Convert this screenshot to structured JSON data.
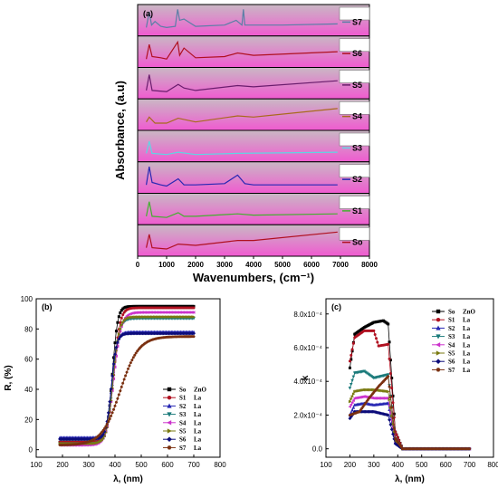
{
  "chart_data": [
    {
      "type": "line",
      "panel_label": "(a)",
      "ylabel": "Absorbance, (a.u)",
      "xlabel": "Wavenumbers, (cm⁻¹)",
      "xlim": [
        0,
        8000
      ],
      "x_ticks": [
        0,
        1000,
        2000,
        3000,
        4000,
        5000,
        6000,
        7000,
        8000
      ],
      "stacked_panels": [
        {
          "name": "S7",
          "color": "#5b7fa6",
          "values": [
            [
              300,
              0.2
            ],
            [
              400,
              0.85
            ],
            [
              480,
              0.3
            ],
            [
              600,
              0.45
            ],
            [
              800,
              0.25
            ],
            [
              1000,
              0.2
            ],
            [
              1300,
              0.25
            ],
            [
              1380,
              0.95
            ],
            [
              1450,
              0.5
            ],
            [
              1600,
              0.55
            ],
            [
              2000,
              0.25
            ],
            [
              3000,
              0.3
            ],
            [
              3400,
              0.5
            ],
            [
              3600,
              0.3
            ],
            [
              3650,
              0.95
            ],
            [
              3700,
              0.3
            ],
            [
              5000,
              0.3
            ],
            [
              6900,
              0.35
            ]
          ]
        },
        {
          "name": "S6",
          "color": "#b01020",
          "values": [
            [
              300,
              0.2
            ],
            [
              400,
              0.8
            ],
            [
              500,
              0.3
            ],
            [
              800,
              0.25
            ],
            [
              1000,
              0.2
            ],
            [
              1380,
              0.9
            ],
            [
              1450,
              0.35
            ],
            [
              1600,
              0.65
            ],
            [
              2000,
              0.25
            ],
            [
              3000,
              0.3
            ],
            [
              3450,
              0.45
            ],
            [
              4000,
              0.35
            ],
            [
              6900,
              0.5
            ]
          ]
        },
        {
          "name": "S5",
          "color": "#6a1d6d",
          "values": [
            [
              300,
              0.2
            ],
            [
              400,
              0.85
            ],
            [
              500,
              0.2
            ],
            [
              1000,
              0.15
            ],
            [
              1400,
              0.45
            ],
            [
              1600,
              0.3
            ],
            [
              2000,
              0.2
            ],
            [
              3450,
              0.4
            ],
            [
              4000,
              0.35
            ],
            [
              6900,
              0.6
            ]
          ]
        },
        {
          "name": "S4",
          "color": "#a86a1c",
          "values": [
            [
              300,
              0.2
            ],
            [
              400,
              0.4
            ],
            [
              600,
              0.15
            ],
            [
              1000,
              0.15
            ],
            [
              1400,
              0.35
            ],
            [
              2000,
              0.2
            ],
            [
              3450,
              0.45
            ],
            [
              4000,
              0.4
            ],
            [
              6900,
              0.75
            ]
          ]
        },
        {
          "name": "S3",
          "color": "#5fd6e3",
          "values": [
            [
              300,
              0.2
            ],
            [
              400,
              0.7
            ],
            [
              500,
              0.2
            ],
            [
              1000,
              0.15
            ],
            [
              1400,
              0.25
            ],
            [
              2000,
              0.15
            ],
            [
              3450,
              0.2
            ],
            [
              6900,
              0.25
            ]
          ]
        },
        {
          "name": "S2",
          "color": "#2727b3",
          "values": [
            [
              300,
              0.2
            ],
            [
              400,
              0.95
            ],
            [
              500,
              0.3
            ],
            [
              800,
              0.2
            ],
            [
              1000,
              0.15
            ],
            [
              1400,
              0.45
            ],
            [
              1600,
              0.2
            ],
            [
              2000,
              0.2
            ],
            [
              3000,
              0.25
            ],
            [
              3450,
              0.6
            ],
            [
              3700,
              0.25
            ],
            [
              4000,
              0.2
            ],
            [
              6900,
              0.2
            ]
          ]
        },
        {
          "name": "S1",
          "color": "#44b030",
          "values": [
            [
              300,
              0.2
            ],
            [
              400,
              0.8
            ],
            [
              500,
              0.2
            ],
            [
              1000,
              0.15
            ],
            [
              1400,
              0.35
            ],
            [
              1600,
              0.2
            ],
            [
              2000,
              0.2
            ],
            [
              3450,
              0.3
            ],
            [
              4000,
              0.25
            ],
            [
              6900,
              0.3
            ]
          ]
        },
        {
          "name": "So",
          "color": "#b01020",
          "values": [
            [
              300,
              0.2
            ],
            [
              400,
              0.75
            ],
            [
              500,
              0.2
            ],
            [
              1000,
              0.15
            ],
            [
              1400,
              0.35
            ],
            [
              2000,
              0.3
            ],
            [
              3450,
              0.5
            ],
            [
              4000,
              0.5
            ],
            [
              6900,
              0.85
            ]
          ]
        }
      ]
    },
    {
      "type": "line",
      "panel_label": "(b)",
      "ylabel": "R, (%)",
      "xlabel": "λ, (nm)",
      "xlim": [
        100,
        800
      ],
      "ylim": [
        -5,
        100
      ],
      "x_ticks": [
        100,
        200,
        300,
        400,
        500,
        600,
        700,
        800
      ],
      "y_ticks": [
        0,
        20,
        40,
        60,
        80,
        100
      ],
      "series": [
        {
          "name": "So",
          "dopant": "ZnO",
          "color": "#000000",
          "marker": "square",
          "plateau": 95,
          "start": 5,
          "mid": 390,
          "width": 10
        },
        {
          "name": "S1",
          "dopant": "La",
          "color": "#b01020",
          "marker": "circle",
          "plateau": 94,
          "start": 5,
          "mid": 395,
          "width": 12
        },
        {
          "name": "S2",
          "dopant": "La",
          "color": "#2727b3",
          "marker": "triangle-up",
          "plateau": 78,
          "start": 8,
          "mid": 388,
          "width": 10
        },
        {
          "name": "S3",
          "dopant": "La",
          "color": "#1a7a7a",
          "marker": "triangle-down",
          "plateau": 87,
          "start": 4,
          "mid": 392,
          "width": 12
        },
        {
          "name": "S4",
          "dopant": "La",
          "color": "#cc33cc",
          "marker": "triangle-left",
          "plateau": 91,
          "start": 3,
          "mid": 395,
          "width": 14
        },
        {
          "name": "S5",
          "dopant": "La",
          "color": "#7a7a10",
          "marker": "triangle-right",
          "plateau": 88,
          "start": 4,
          "mid": 393,
          "width": 12
        },
        {
          "name": "S6",
          "dopant": "La",
          "color": "#0d0d7a",
          "marker": "diamond",
          "plateau": 77,
          "start": 7,
          "mid": 386,
          "width": 10
        },
        {
          "name": "S7",
          "dopant": "La",
          "color": "#7a3010",
          "marker": "hexagon",
          "plateau": 75,
          "start": 3,
          "mid": 420,
          "width": 35
        }
      ]
    },
    {
      "type": "line",
      "panel_label": "(c)",
      "ylabel": "k",
      "xlabel": "λ, (nm)",
      "xlim": [
        100,
        800
      ],
      "ylim": [
        -5e-05,
        0.00089
      ],
      "x_ticks": [
        100,
        200,
        300,
        400,
        500,
        600,
        700,
        800
      ],
      "y_ticks": [
        0.0,
        0.0002,
        0.0004,
        0.0006,
        0.0008
      ],
      "y_tick_labels": [
        "0.0",
        "2.0x10⁻⁴",
        "4.0x10⁻⁴",
        "6.0x10⁻⁴",
        "8.0x10⁻⁴"
      ],
      "series": [
        {
          "name": "So",
          "dopant": "ZnO",
          "color": "#000000",
          "marker": "square",
          "points": [
            [
              200,
              0.00048
            ],
            [
              220,
              0.00068
            ],
            [
              260,
              0.00072
            ],
            [
              300,
              0.00075
            ],
            [
              340,
              0.00076
            ],
            [
              360,
              0.00074
            ],
            [
              390,
              0.0001
            ],
            [
              420,
              0.0
            ],
            [
              700,
              0.0
            ]
          ]
        },
        {
          "name": "S1",
          "dopant": "La",
          "color": "#b01020",
          "marker": "circle",
          "points": [
            [
              200,
              0.00052
            ],
            [
              220,
              0.00066
            ],
            [
              260,
              0.0007
            ],
            [
              300,
              0.0007
            ],
            [
              320,
              0.00061
            ],
            [
              360,
              0.00062
            ],
            [
              390,
              0.0001
            ],
            [
              420,
              0.0
            ],
            [
              700,
              0.0
            ]
          ]
        },
        {
          "name": "S2",
          "dopant": "La",
          "color": "#2727b3",
          "marker": "triangle-up",
          "points": [
            [
              200,
              0.0002
            ],
            [
              220,
              0.00026
            ],
            [
              260,
              0.00027
            ],
            [
              300,
              0.00026
            ],
            [
              360,
              0.00027
            ],
            [
              390,
              4e-05
            ],
            [
              420,
              0.0
            ],
            [
              700,
              0.0
            ]
          ]
        },
        {
          "name": "S3",
          "dopant": "La",
          "color": "#1a7a7a",
          "marker": "triangle-down",
          "points": [
            [
              200,
              0.00036
            ],
            [
              220,
              0.00045
            ],
            [
              260,
              0.00046
            ],
            [
              300,
              0.00042
            ],
            [
              360,
              0.00044
            ],
            [
              390,
              6e-05
            ],
            [
              420,
              0.0
            ],
            [
              700,
              0.0
            ]
          ]
        },
        {
          "name": "S4",
          "dopant": "La",
          "color": "#cc33cc",
          "marker": "triangle-left",
          "points": [
            [
              200,
              0.00025
            ],
            [
              220,
              0.0003
            ],
            [
              260,
              0.00031
            ],
            [
              300,
              0.0003
            ],
            [
              360,
              0.0003
            ],
            [
              390,
              4e-05
            ],
            [
              420,
              0.0
            ],
            [
              700,
              0.0
            ]
          ]
        },
        {
          "name": "S5",
          "dopant": "La",
          "color": "#7a7a10",
          "marker": "triangle-right",
          "points": [
            [
              200,
              0.00028
            ],
            [
              220,
              0.00034
            ],
            [
              260,
              0.00035
            ],
            [
              300,
              0.00035
            ],
            [
              360,
              0.00034
            ],
            [
              390,
              5e-05
            ],
            [
              420,
              0.0
            ],
            [
              700,
              0.0
            ]
          ]
        },
        {
          "name": "S6",
          "dopant": "La",
          "color": "#0d0d7a",
          "marker": "diamond",
          "points": [
            [
              200,
              0.00018
            ],
            [
              220,
              0.00022
            ],
            [
              260,
              0.00022
            ],
            [
              300,
              0.00022
            ],
            [
              360,
              0.0002
            ],
            [
              390,
              3e-05
            ],
            [
              420,
              0.0
            ],
            [
              700,
              0.0
            ]
          ]
        },
        {
          "name": "S7",
          "dopant": "La",
          "color": "#7a3010",
          "marker": "hexagon",
          "points": [
            [
              200,
              0.0002
            ],
            [
              240,
              0.00022
            ],
            [
              280,
              0.0003
            ],
            [
              320,
              0.00037
            ],
            [
              360,
              0.00043
            ],
            [
              390,
              6e-05
            ],
            [
              420,
              0.0
            ],
            [
              700,
              0.0
            ]
          ]
        }
      ]
    }
  ]
}
